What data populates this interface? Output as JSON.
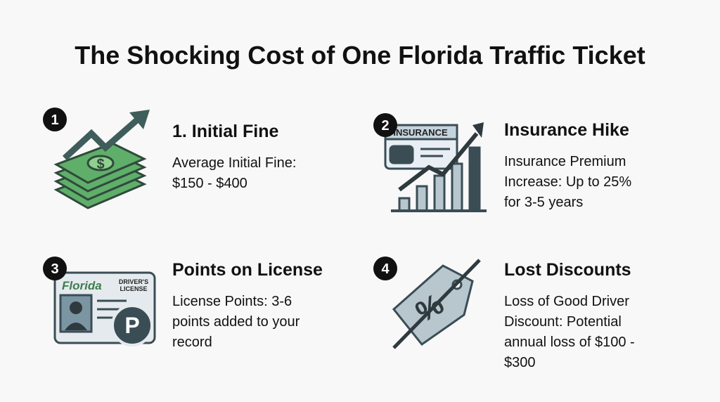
{
  "title": "The Shocking Cost of One Florida Traffic Ticket",
  "items": [
    {
      "badge": "1",
      "heading": "1. Initial Fine",
      "body": [
        "Average Initial Fine:",
        "$150 - $400"
      ],
      "icon_text": [
        "$"
      ]
    },
    {
      "badge": "2",
      "heading": "Insurance Hike",
      "body": [
        "Insurance Premium",
        "Increase: Up to 25%",
        "for 3-5 years"
      ],
      "icon_text": [
        "INSURANCE"
      ]
    },
    {
      "badge": "3",
      "heading": "Points on License",
      "body": [
        "License Points: 3-6",
        "points added to your",
        "record"
      ],
      "icon_text": [
        "Florida",
        "DRIVER'S",
        "LICENSE",
        "P"
      ]
    },
    {
      "badge": "4",
      "heading": "Lost Discounts",
      "body": [
        "Loss of Good Driver",
        "Discount: Potential",
        "annual loss of $100 -",
        "$300"
      ],
      "icon_text": [
        "%"
      ]
    }
  ]
}
